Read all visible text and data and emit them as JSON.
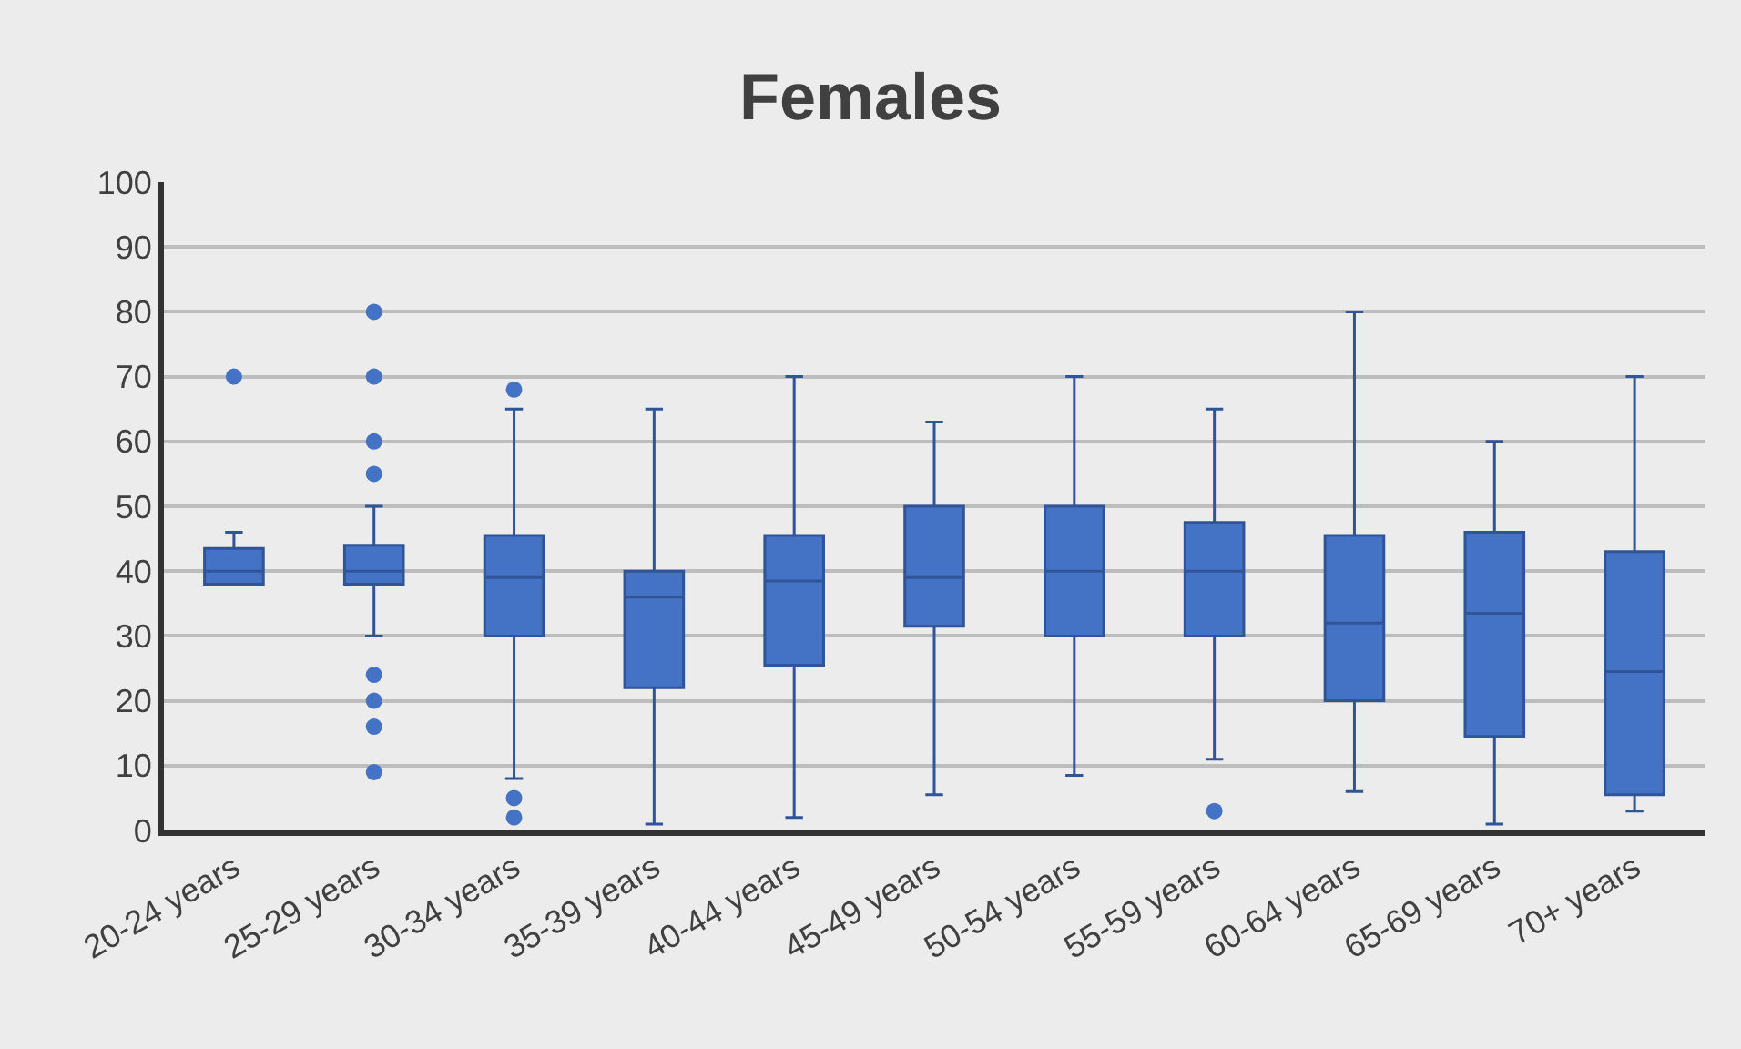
{
  "chart_data": {
    "type": "box",
    "title": "Females",
    "categories": [
      "20-24 years",
      "25-29 years",
      "30-34 years",
      "35-39 years",
      "40-44 years",
      "45-49 years",
      "50-54 years",
      "55-59 years",
      "60-64 years",
      "65-69 years",
      "70+ years"
    ],
    "color": "#4472c4",
    "boxes": [
      {
        "low": 38,
        "q1": 38,
        "median": 40,
        "q3": 43.5,
        "high": 46,
        "outliers": [
          70
        ]
      },
      {
        "low": 30,
        "q1": 38,
        "median": 40,
        "q3": 44,
        "high": 50,
        "outliers": [
          80,
          70,
          60,
          55,
          24,
          20,
          16,
          9
        ]
      },
      {
        "low": 8,
        "q1": 30,
        "median": 39,
        "q3": 45.5,
        "high": 65,
        "outliers": [
          68,
          5,
          2
        ]
      },
      {
        "low": 1,
        "q1": 22,
        "median": 36,
        "q3": 40,
        "high": 65
      },
      {
        "low": 2,
        "q1": 25.5,
        "median": 38.5,
        "q3": 45.5,
        "high": 70
      },
      {
        "low": 5.5,
        "q1": 31.5,
        "median": 39,
        "q3": 50,
        "high": 63
      },
      {
        "low": 8.5,
        "q1": 30,
        "median": 40,
        "q3": 50,
        "high": 70
      },
      {
        "low": 11,
        "q1": 30,
        "median": 40,
        "q3": 47.5,
        "high": 65,
        "outliers": [
          3
        ]
      },
      {
        "low": 6,
        "q1": 20,
        "median": 32,
        "q3": 45.5,
        "high": 80
      },
      {
        "low": 1,
        "q1": 14.5,
        "median": 33.5,
        "q3": 46,
        "high": 60
      },
      {
        "low": 3,
        "q1": 5.5,
        "median": 24.5,
        "q3": 43,
        "high": 70
      }
    ],
    "ylim": [
      0,
      100
    ],
    "yticks": [
      0,
      10,
      20,
      30,
      40,
      50,
      60,
      70,
      80,
      90,
      100
    ],
    "grid": "y"
  }
}
